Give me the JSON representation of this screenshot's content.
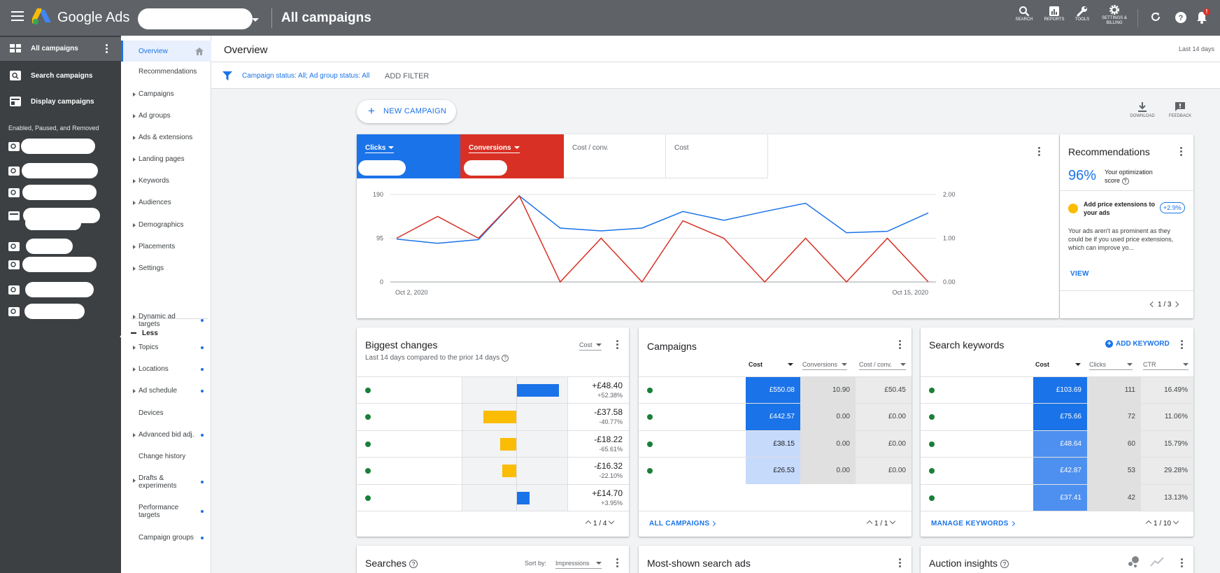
{
  "app": {
    "brand": "Google Ads",
    "page_title": "All campaigns"
  },
  "topbar": {
    "tools": [
      {
        "label": "SEARCH",
        "icon": "search-icon"
      },
      {
        "label": "REPORTS",
        "icon": "reports-icon"
      },
      {
        "label": "TOOLS",
        "icon": "wrench-icon"
      },
      {
        "label": "SETTINGS & BILLING",
        "icon": "gear-icon"
      }
    ],
    "notification_badge": "!"
  },
  "left_nav": {
    "items": [
      {
        "label": "All campaigns",
        "icon": "grid-icon"
      },
      {
        "label": "Search campaigns",
        "icon": "search-campaign-icon"
      },
      {
        "label": "Display campaigns",
        "icon": "display-campaign-icon"
      }
    ],
    "section_label": "Enabled, Paused, and Removed"
  },
  "page_nav": {
    "items": [
      "Overview",
      "Recommendations",
      "Campaigns",
      "Ad groups",
      "Ads & extensions",
      "Landing pages",
      "Keywords",
      "Audiences",
      "Demographics",
      "Placements",
      "Settings"
    ],
    "less_label": "Less",
    "more_items": [
      "Dynamic ad targets",
      "Topics",
      "Locations",
      "Ad schedule",
      "Devices",
      "Advanced bid adj.",
      "Change history",
      "Drafts & experiments",
      "Performance targets",
      "Campaign groups"
    ]
  },
  "header": {
    "title": "Overview",
    "date_range": "Last 14 days"
  },
  "filter": {
    "text": "Campaign status: All; Ad group status: All",
    "add_label": "ADD FILTER"
  },
  "actions": {
    "new_campaign": "NEW CAMPAIGN",
    "download": "DOWNLOAD",
    "feedback": "FEEDBACK"
  },
  "chart_card": {
    "metrics": [
      {
        "label": "Clicks",
        "color": "#1a73e8"
      },
      {
        "label": "Conversions",
        "color": "#d93025"
      },
      {
        "label": "Cost / conv."
      },
      {
        "label": "Cost"
      }
    ]
  },
  "chart_data": {
    "type": "line",
    "x": [
      "Oct 2, 2020",
      "Oct 3, 2020",
      "Oct 4, 2020",
      "Oct 5, 2020",
      "Oct 6, 2020",
      "Oct 7, 2020",
      "Oct 8, 2020",
      "Oct 9, 2020",
      "Oct 10, 2020",
      "Oct 11, 2020",
      "Oct 12, 2020",
      "Oct 13, 2020",
      "Oct 14, 2020",
      "Oct 15, 2020"
    ],
    "x_tick_labels": [
      "Oct 2, 2020",
      "Oct 15, 2020"
    ],
    "y_left_ticks": [
      "190",
      "95",
      "0"
    ],
    "y_right_ticks": [
      "2.00",
      "1.00",
      "0.00"
    ],
    "y_left_range": [
      0,
      190
    ],
    "y_right_range": [
      0,
      2
    ],
    "series": [
      {
        "name": "Clicks",
        "axis": "left",
        "color": "#1a73e8",
        "values": [
          93,
          84,
          92,
          187,
          117,
          111,
          117,
          153,
          134,
          153,
          171,
          107,
          110,
          150
        ]
      },
      {
        "name": "Conversions",
        "axis": "right",
        "color": "#d93025",
        "values": [
          1,
          1.5,
          1,
          1.97,
          0,
          1,
          0,
          1.4,
          1,
          0,
          1,
          0,
          1,
          0
        ]
      }
    ],
    "grid": true
  },
  "recommendations": {
    "title": "Recommendations",
    "score": "96%",
    "score_label": "Your optimization score",
    "item_title": "Add price extensions to your ads",
    "item_badge": "+2.9%",
    "item_desc": "Your ads aren't as prominent as they could be if you used price extensions, which can improve yo...",
    "view_label": "VIEW",
    "pagination": "1 / 3"
  },
  "biggest_changes": {
    "title": "Biggest changes",
    "subtitle": "Last 14 days compared to the prior 14 days",
    "metric": "Cost",
    "rows": [
      {
        "value": "+£48.40",
        "pct": "+52.38%",
        "change": 48.4
      },
      {
        "value": "-£37.58",
        "pct": "-40.77%",
        "change": -37.58
      },
      {
        "value": "-£18.22",
        "pct": "-65.61%",
        "change": -18.22
      },
      {
        "value": "-£16.32",
        "pct": "-22.10%",
        "change": -16.32
      },
      {
        "value": "+£14.70",
        "pct": "+3.95%",
        "change": 14.7
      }
    ],
    "pagination": "1 / 4"
  },
  "campaigns_card": {
    "title": "Campaigns",
    "columns": [
      "Cost",
      "Conversions",
      "Cost / conv."
    ],
    "rows": [
      {
        "cost": "£550.08",
        "conv": "10.90",
        "cpc": "£50.45",
        "cost_value": 550.08
      },
      {
        "cost": "£442.57",
        "conv": "0.00",
        "cpc": "£0.00",
        "cost_value": 442.57
      },
      {
        "cost": "£38.15",
        "conv": "0.00",
        "cpc": "£0.00",
        "cost_value": 38.15
      },
      {
        "cost": "£26.53",
        "conv": "0.00",
        "cpc": "£0.00",
        "cost_value": 26.53
      }
    ],
    "link": "ALL CAMPAIGNS",
    "pagination": "1 / 1"
  },
  "keywords_card": {
    "title": "Search keywords",
    "add_label": "ADD KEYWORD",
    "columns": [
      "Cost",
      "Clicks",
      "CTR"
    ],
    "rows": [
      {
        "cost": "£103.69",
        "clicks": "111",
        "ctr": "16.49%",
        "cost_value": 103.69
      },
      {
        "cost": "£75.66",
        "clicks": "72",
        "ctr": "11.06%",
        "cost_value": 75.66
      },
      {
        "cost": "£48.64",
        "clicks": "60",
        "ctr": "15.79%",
        "cost_value": 48.64
      },
      {
        "cost": "£42.87",
        "clicks": "53",
        "ctr": "29.28%",
        "cost_value": 42.87
      },
      {
        "cost": "£37.41",
        "clicks": "42",
        "ctr": "13.13%",
        "cost_value": 37.41
      }
    ],
    "link": "MANAGE KEYWORDS",
    "pagination": "1 / 10"
  },
  "bottom_cards": {
    "searches": "Searches",
    "sort_by": "Sort by:",
    "sort_value": "Impressions",
    "ads": "Most-shown search ads",
    "auction": "Auction insights"
  }
}
